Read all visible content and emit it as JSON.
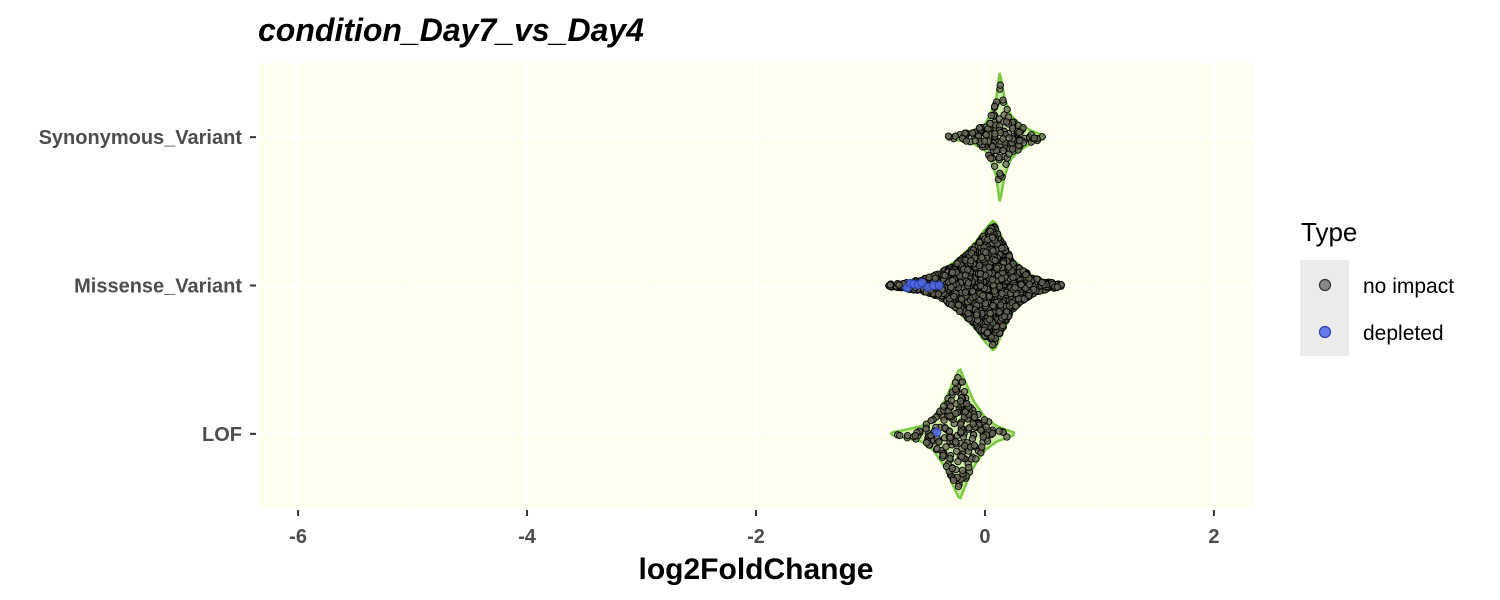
{
  "chart_data": {
    "type": "violin",
    "title": "condition_Day7_vs_Day4",
    "xlabel": "log2FoldChange",
    "ylabel": "",
    "xlim": [
      -6.35,
      2.35
    ],
    "x_ticks": [
      "-6",
      "-4",
      "-2",
      "0",
      "2"
    ],
    "x_tick_values": [
      -6,
      -4,
      -2,
      0,
      2
    ],
    "categories": [
      "Synonymous_Variant",
      "Missense_Variant",
      "LOF"
    ],
    "panel_background": "#fffff0",
    "violin_fill": "#a6d96a",
    "violin_stroke": "#7ac943",
    "grid": true,
    "legend": {
      "title": "Type",
      "placement": "right",
      "items": [
        {
          "label": "no impact",
          "color": "#777777"
        },
        {
          "label": "depleted",
          "color": "#4f6ae8"
        }
      ]
    },
    "series": [
      {
        "category": "Synonymous_Variant",
        "n_points": 160,
        "center": 0.12,
        "min": -0.32,
        "max": 0.52,
        "density": [
          [
            -0.32,
            0.02
          ],
          [
            -0.2,
            0.06
          ],
          [
            -0.1,
            0.1
          ],
          [
            0.0,
            0.2
          ],
          [
            0.05,
            0.35
          ],
          [
            0.1,
            0.6
          ],
          [
            0.13,
            1.0
          ],
          [
            0.17,
            0.6
          ],
          [
            0.22,
            0.35
          ],
          [
            0.3,
            0.2
          ],
          [
            0.4,
            0.1
          ],
          [
            0.52,
            0.02
          ]
        ],
        "depleted": []
      },
      {
        "category": "Missense_Variant",
        "n_points": 3000,
        "center": 0.08,
        "min": -0.85,
        "max": 0.68,
        "density": [
          [
            -0.85,
            0.02
          ],
          [
            -0.7,
            0.05
          ],
          [
            -0.55,
            0.1
          ],
          [
            -0.4,
            0.2
          ],
          [
            -0.25,
            0.38
          ],
          [
            -0.1,
            0.62
          ],
          [
            0.0,
            0.85
          ],
          [
            0.08,
            1.0
          ],
          [
            0.15,
            0.72
          ],
          [
            0.25,
            0.38
          ],
          [
            0.4,
            0.16
          ],
          [
            0.55,
            0.06
          ],
          [
            0.68,
            0.02
          ]
        ],
        "depleted": [
          -0.68,
          -0.65,
          -0.62,
          -0.58,
          -0.55,
          -0.5,
          -0.45,
          -0.4
        ]
      },
      {
        "category": "LOF",
        "n_points": 220,
        "center": -0.2,
        "min": -0.82,
        "max": 0.25,
        "density": [
          [
            -0.82,
            0.02
          ],
          [
            -0.7,
            0.06
          ],
          [
            -0.55,
            0.12
          ],
          [
            -0.45,
            0.25
          ],
          [
            -0.35,
            0.5
          ],
          [
            -0.28,
            0.78
          ],
          [
            -0.22,
            1.0
          ],
          [
            -0.17,
            0.78
          ],
          [
            -0.1,
            0.5
          ],
          [
            0.0,
            0.25
          ],
          [
            0.1,
            0.12
          ],
          [
            0.25,
            0.02
          ]
        ],
        "depleted": [
          -0.42
        ]
      }
    ]
  }
}
